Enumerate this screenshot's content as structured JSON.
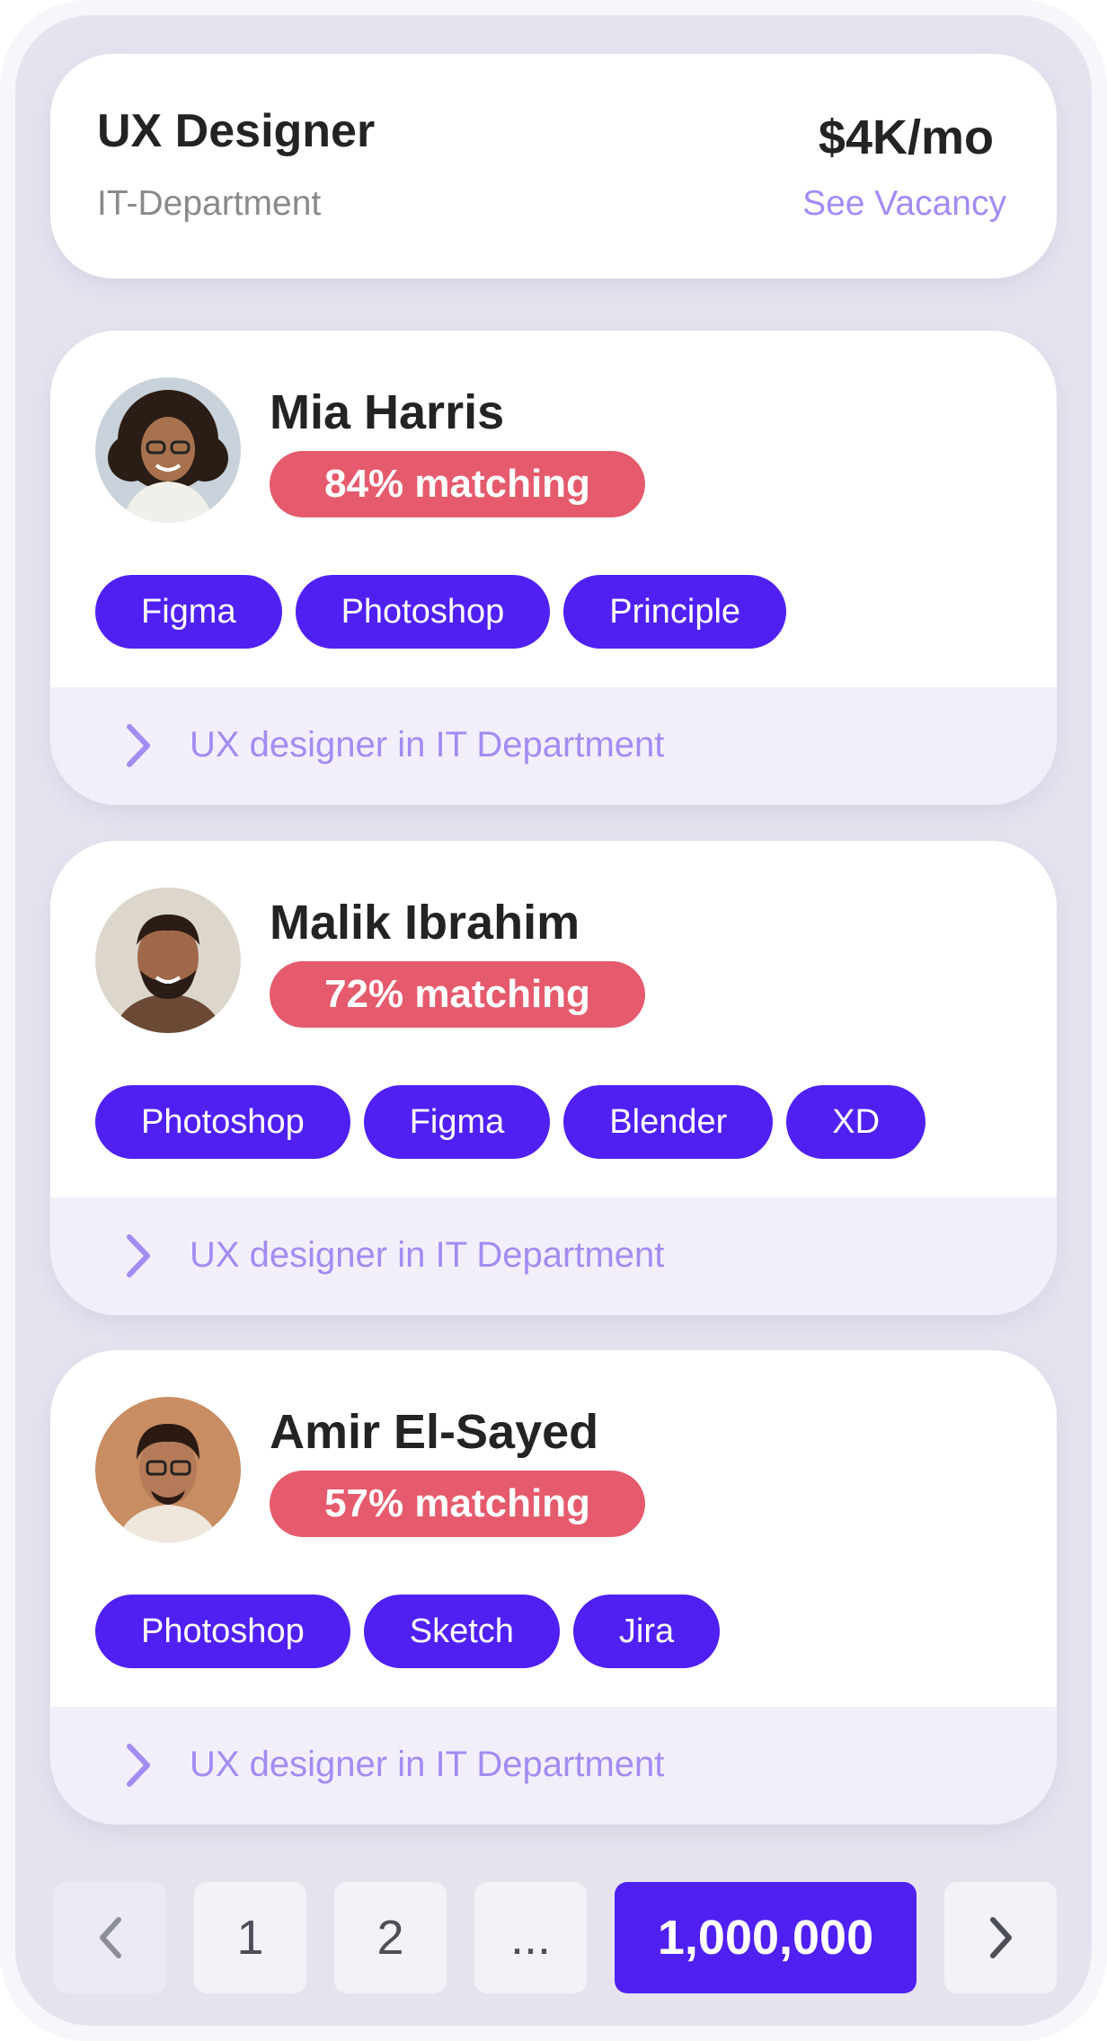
{
  "job": {
    "title": "UX Designer",
    "department": "IT-Department",
    "salary": "$4K/mo",
    "link": "See Vacancy"
  },
  "candidates": [
    {
      "name": "Mia Harris",
      "match": "84% matching",
      "skills": [
        "Figma",
        "Photoshop",
        "Principle"
      ],
      "footer": "UX designer in IT Department"
    },
    {
      "name": "Malik Ibrahim",
      "match": "72% matching",
      "skills": [
        "Photoshop",
        "Figma",
        "Blender",
        "XD"
      ],
      "footer": "UX designer in IT Department"
    },
    {
      "name": "Amir El-Sayed",
      "match": "57% matching",
      "skills": [
        "Photoshop",
        "Sketch",
        "Jira"
      ],
      "footer": "UX designer in IT Department"
    }
  ],
  "pagination": {
    "pages": [
      "1",
      "2",
      "...",
      "1,000,000"
    ],
    "current": "1,000,000"
  },
  "colors": {
    "accent": "#5020f2",
    "match_badge": "#e55b6d",
    "link": "#a48bf2"
  },
  "icons": {
    "footer_chevron": "chevron-right-icon",
    "prev": "chevron-left-icon",
    "next": "chevron-right-icon"
  }
}
